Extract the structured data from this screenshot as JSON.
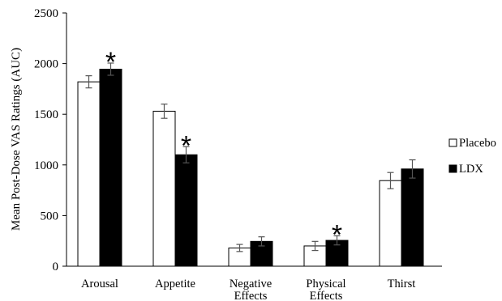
{
  "chart_data": {
    "type": "bar",
    "title": "",
    "xlabel": "",
    "ylabel": "Mean Post-Dose VAS Ratings (AUC)",
    "ylim": [
      0,
      2500
    ],
    "yticks": [
      0,
      500,
      1000,
      1500,
      2000,
      2500
    ],
    "categories": [
      [
        "Arousal"
      ],
      [
        "Appetite"
      ],
      [
        "Negative",
        "Effects"
      ],
      [
        "Physical",
        "Effects"
      ],
      [
        "Thirst"
      ]
    ],
    "series": [
      {
        "name": "Placebo",
        "color": "#ffffff",
        "values": [
          1820,
          1530,
          180,
          200,
          845
        ],
        "errors": [
          60,
          70,
          35,
          45,
          80
        ],
        "significant": [
          false,
          false,
          false,
          false,
          false
        ]
      },
      {
        "name": "LDX",
        "color": "#000000",
        "values": [
          1945,
          1100,
          245,
          255,
          960
        ],
        "errors": [
          60,
          80,
          45,
          45,
          90
        ],
        "significant": [
          true,
          true,
          false,
          true,
          false
        ]
      }
    ],
    "significance_marker": "*",
    "legend": "right",
    "grid": false
  }
}
